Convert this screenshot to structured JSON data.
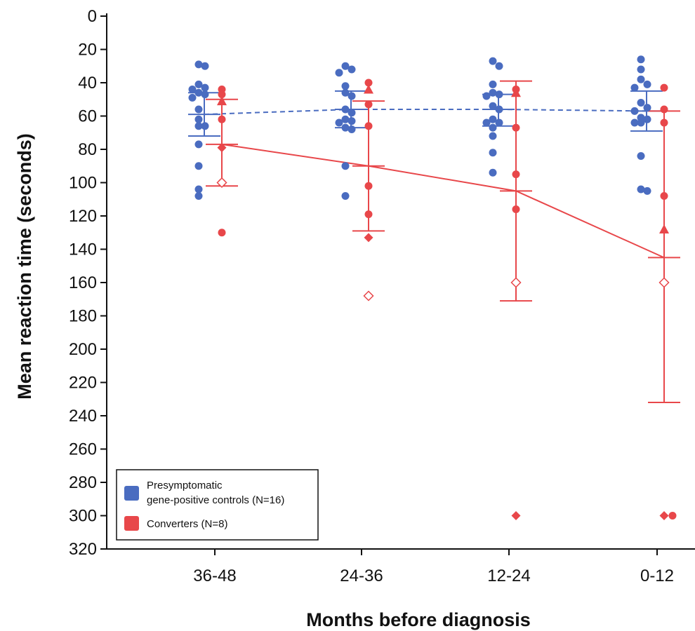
{
  "chart_data": {
    "type": "scatter",
    "xlabel": "Months before diagnosis",
    "ylabel": "Mean reaction time (seconds)",
    "categories": [
      "36-48",
      "24-36",
      "12-24",
      "0-12"
    ],
    "ylim": [
      0,
      320
    ],
    "y_inverted": true,
    "y_ticks": [
      0,
      20,
      40,
      60,
      80,
      100,
      120,
      140,
      160,
      180,
      200,
      220,
      240,
      260,
      280,
      300,
      320
    ],
    "grid": false,
    "legend_position": "bottom-left",
    "series": [
      {
        "name": "Presymptomatic gene-positive controls (N=16)",
        "color": "#4a6cc0",
        "line_style": "dashed",
        "mean": [
          59,
          56,
          56,
          57
        ],
        "error_low": [
          46,
          45,
          47,
          45
        ],
        "error_high": [
          72,
          67,
          66,
          69
        ],
        "points": [
          [
            29,
            30,
            41,
            43,
            44,
            46,
            47,
            49,
            56,
            62,
            66,
            66,
            77,
            90,
            104,
            108
          ],
          [
            30,
            32,
            34,
            42,
            46,
            48,
            56,
            58,
            62,
            63,
            64,
            67,
            68,
            90,
            108
          ],
          [
            27,
            30,
            41,
            46,
            47,
            48,
            54,
            56,
            62,
            64,
            64,
            67,
            72,
            82,
            94
          ],
          [
            26,
            32,
            38,
            41,
            43,
            52,
            55,
            57,
            61,
            62,
            64,
            64,
            84,
            104,
            105
          ]
        ]
      },
      {
        "name": "Converters (N=8)",
        "color": "#e8474a",
        "line_style": "solid",
        "mean": [
          77,
          90,
          105,
          145
        ],
        "error_low": [
          50,
          51,
          39,
          57
        ],
        "error_high": [
          102,
          129,
          171,
          232
        ],
        "points": [
          {
            "circles": [
              44,
              47,
              62,
              100,
              130
            ],
            "filled_diamonds": [
              79
            ],
            "open_diamonds": [
              100
            ],
            "triangles": [
              51
            ]
          },
          {
            "circles": [
              40,
              53,
              66,
              102,
              119
            ],
            "filled_diamonds": [
              133
            ],
            "open_diamonds": [
              168
            ],
            "triangles": [
              44
            ]
          },
          {
            "circles": [
              44,
              67,
              95,
              116
            ],
            "filled_diamonds": [
              300
            ],
            "open_diamonds": [
              160
            ],
            "triangles": [
              46
            ]
          },
          {
            "circles": [
              43,
              56,
              64,
              108,
              300
            ],
            "filled_diamonds": [
              300
            ],
            "open_diamonds": [
              160
            ],
            "triangles": [
              128
            ]
          }
        ]
      }
    ]
  },
  "legend": {
    "item1_line1": "Presymptomatic",
    "item1_line2": "gene-positive controls (N=16)",
    "item2": "Converters (N=8)"
  }
}
